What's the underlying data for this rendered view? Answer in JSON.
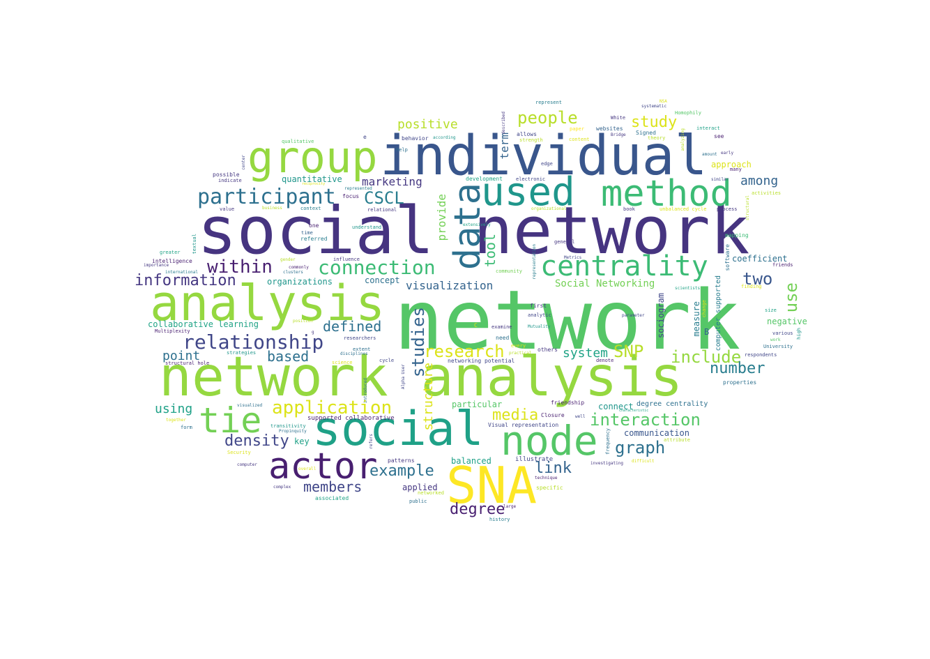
{
  "words": [
    {
      "text": "network",
      "color": "#55c667"
    },
    {
      "text": "social network",
      "color": "#463480"
    },
    {
      "text": "network analysis",
      "color": "#95d840"
    },
    {
      "text": "individual",
      "color": "#39568c"
    },
    {
      "text": "analysis",
      "color": "#95d840"
    },
    {
      "text": "social",
      "color": "#1fa187"
    },
    {
      "text": "SNA",
      "color": "#fde725"
    },
    {
      "text": "group",
      "color": "#95d840"
    },
    {
      "text": "used",
      "color": "#1f968b"
    },
    {
      "text": "method",
      "color": "#3cbb75"
    },
    {
      "text": "data",
      "color": "#2d708e"
    },
    {
      "text": "node",
      "color": "#55c667"
    },
    {
      "text": "actor",
      "color": "#481f70"
    },
    {
      "text": "tie",
      "color": "#73d055"
    },
    {
      "text": "centrality",
      "color": "#3cbb75"
    },
    {
      "text": "relationship",
      "color": "#404688"
    },
    {
      "text": "participant",
      "color": "#2d708e"
    },
    {
      "text": "connection",
      "color": "#3cbb75"
    },
    {
      "text": "application",
      "color": "#dce319"
    },
    {
      "text": "interaction",
      "color": "#55c667"
    },
    {
      "text": "people",
      "color": "#b8de29"
    },
    {
      "text": "research",
      "color": "#dce319"
    },
    {
      "text": "include",
      "color": "#95d840"
    },
    {
      "text": "studies",
      "color": "#33638d"
    },
    {
      "text": "within",
      "color": "#481f70"
    },
    {
      "text": "information",
      "color": "#453781"
    },
    {
      "text": "CSCL",
      "color": "#287d8e"
    },
    {
      "text": "graph",
      "color": "#2d708e"
    },
    {
      "text": "density",
      "color": "#404688"
    },
    {
      "text": "number",
      "color": "#287d8e"
    },
    {
      "text": "study",
      "color": "#dce319"
    },
    {
      "text": "two",
      "color": "#39568c"
    },
    {
      "text": "use",
      "color": "#73d055"
    },
    {
      "text": "degree",
      "color": "#481f70"
    },
    {
      "text": "example",
      "color": "#2d708e"
    },
    {
      "text": "media",
      "color": "#dce319"
    },
    {
      "text": "members",
      "color": "#404688"
    },
    {
      "text": "defined",
      "color": "#2d708e"
    },
    {
      "text": "SNP",
      "color": "#b8de29"
    },
    {
      "text": "link",
      "color": "#33638d"
    },
    {
      "text": "tool",
      "color": "#3cbb75"
    },
    {
      "text": "positive",
      "color": "#b8de29"
    },
    {
      "text": "structure",
      "color": "#dce319"
    },
    {
      "text": "among",
      "color": "#33638d"
    },
    {
      "text": "based",
      "color": "#2d708e"
    },
    {
      "text": "system",
      "color": "#20a386"
    },
    {
      "text": "point",
      "color": "#2d708e"
    },
    {
      "text": "using",
      "color": "#1fa187"
    },
    {
      "text": "marketing",
      "color": "#453781"
    },
    {
      "text": "visualization",
      "color": "#33638d"
    },
    {
      "text": "term",
      "color": "#33638d"
    },
    {
      "text": "provide",
      "color": "#73d055"
    },
    {
      "text": "Social Networking",
      "color": "#73d055"
    },
    {
      "text": "collaborative learning",
      "color": "#20a386"
    },
    {
      "text": "particular",
      "color": "#55c667"
    },
    {
      "text": "quantitative",
      "color": "#1f968b"
    },
    {
      "text": "coefficient",
      "color": "#2d708e"
    },
    {
      "text": "organizations",
      "color": "#1f968b"
    },
    {
      "text": "concept",
      "color": "#2d708e"
    },
    {
      "text": "approach",
      "color": "#dce319"
    },
    {
      "text": "negative",
      "color": "#55c667"
    },
    {
      "text": "communication",
      "color": "#39568c"
    },
    {
      "text": "sociogram",
      "color": "#404688"
    },
    {
      "text": "measure",
      "color": "#287d8e"
    },
    {
      "text": "computer supported",
      "color": "#287d8e"
    },
    {
      "text": "applied",
      "color": "#453781"
    },
    {
      "text": "balanced",
      "color": "#1fa187"
    },
    {
      "text": "key",
      "color": "#1fa187"
    },
    {
      "text": "connect",
      "color": "#1f968b"
    },
    {
      "text": "degree centrality",
      "color": "#2d708e"
    },
    {
      "text": "supported collaborative",
      "color": "#481f70"
    },
    {
      "text": "illustrate",
      "color": "#404688"
    },
    {
      "text": "friendship",
      "color": "#481f70"
    },
    {
      "text": "Visual representation",
      "color": "#404688"
    },
    {
      "text": "networking potential",
      "color": "#404688"
    },
    {
      "text": "Closure",
      "color": "#481f70"
    },
    {
      "text": "B",
      "color": "#33638d"
    },
    {
      "text": "software",
      "color": "#2d708e"
    },
    {
      "text": "properties",
      "color": "#2d708e"
    },
    {
      "text": "respondents",
      "color": "#404688"
    },
    {
      "text": "University",
      "color": "#2d708e"
    },
    {
      "text": "size",
      "color": "#20a386"
    },
    {
      "text": "high",
      "color": "#1f968b"
    },
    {
      "text": "various",
      "color": "#404688"
    },
    {
      "text": "work",
      "color": "#55c667"
    },
    {
      "text": "friends",
      "color": "#481f70"
    },
    {
      "text": "mapping",
      "color": "#3cbb75"
    },
    {
      "text": "finding",
      "color": "#dce319"
    },
    {
      "text": "scientists",
      "color": "#20a386"
    },
    {
      "text": "change",
      "color": "#dce319"
    },
    {
      "text": "parameter",
      "color": "#404688"
    },
    {
      "text": "Mutuality",
      "color": "#1f968b"
    },
    {
      "text": "examine",
      "color": "#453781"
    },
    {
      "text": "analytic",
      "color": "#404688"
    },
    {
      "text": "first",
      "color": "#453781"
    },
    {
      "text": "need",
      "color": "#2d708e"
    },
    {
      "text": "every",
      "color": "#dce319"
    },
    {
      "text": "practical",
      "color": "#b8de29"
    },
    {
      "text": "others",
      "color": "#453781"
    },
    {
      "text": "denote",
      "color": "#481f70"
    },
    {
      "text": "C",
      "color": "#dce319"
    },
    {
      "text": "representation",
      "color": "#287d8e"
    },
    {
      "text": "Metrics",
      "color": "#404688"
    },
    {
      "text": "general",
      "color": "#453781"
    },
    {
      "text": "community",
      "color": "#73d055"
    },
    {
      "text": "extensively",
      "color": "#20a386"
    },
    {
      "text": "understand",
      "color": "#1f968b"
    },
    {
      "text": "one",
      "color": "#481f70"
    },
    {
      "text": "time",
      "color": "#33638d"
    },
    {
      "text": "referred",
      "color": "#287d8e"
    },
    {
      "text": "context",
      "color": "#287d8e"
    },
    {
      "text": "relational",
      "color": "#453781"
    },
    {
      "text": "focus",
      "color": "#481f70"
    },
    {
      "text": "represented",
      "color": "#287d8e"
    },
    {
      "text": "development",
      "color": "#20a386"
    },
    {
      "text": "electronic",
      "color": "#404688"
    },
    {
      "text": "edge",
      "color": "#404688"
    },
    {
      "text": "allows",
      "color": "#404688"
    },
    {
      "text": "strength",
      "color": "#b8de29"
    },
    {
      "text": "paper",
      "color": "#fde725"
    },
    {
      "text": "content",
      "color": "#dce319"
    },
    {
      "text": "websites",
      "color": "#33638d"
    },
    {
      "text": "Bridge",
      "color": "#453781"
    },
    {
      "text": "Signed",
      "color": "#2d708e"
    },
    {
      "text": "theory",
      "color": "#b8de29"
    },
    {
      "text": "White",
      "color": "#453781"
    },
    {
      "text": "described",
      "color": "#453781"
    },
    {
      "text": "behavior",
      "color": "#404688"
    },
    {
      "text": "according",
      "color": "#1f968b"
    },
    {
      "text": "help",
      "color": "#2d708e"
    },
    {
      "text": "e",
      "color": "#404688"
    },
    {
      "text": "qualitative",
      "color": "#55c667"
    },
    {
      "text": "center",
      "color": "#404688"
    },
    {
      "text": "possible",
      "color": "#453781"
    },
    {
      "text": "indicate",
      "color": "#453781"
    },
    {
      "text": "reciprocity",
      "color": "#dce319"
    },
    {
      "text": "value",
      "color": "#453781"
    },
    {
      "text": "business",
      "color": "#b8de29"
    },
    {
      "text": "textual",
      "color": "#1f968b"
    },
    {
      "text": "greater",
      "color": "#20a386"
    },
    {
      "text": "intelligence",
      "color": "#481f70"
    },
    {
      "text": "importance",
      "color": "#453781"
    },
    {
      "text": "international",
      "color": "#287d8e"
    },
    {
      "text": "gender",
      "color": "#b8de29"
    },
    {
      "text": "commonly",
      "color": "#481f70"
    },
    {
      "text": "clusters",
      "color": "#2d708e"
    },
    {
      "text": "influence",
      "color": "#453781"
    },
    {
      "text": "researchers",
      "color": "#404688"
    },
    {
      "text": "position",
      "color": "#b8de29"
    },
    {
      "text": "g",
      "color": "#453781"
    },
    {
      "text": "Multiplexity",
      "color": "#481f70"
    },
    {
      "text": "extent",
      "color": "#2d708e"
    },
    {
      "text": "disciplines",
      "color": "#2d708e"
    },
    {
      "text": "strategies",
      "color": "#1f968b"
    },
    {
      "text": "science",
      "color": "#dce319"
    },
    {
      "text": "structural hole",
      "color": "#481f70"
    },
    {
      "text": "cycle",
      "color": "#404688"
    },
    {
      "text": "introduced",
      "color": "#2d708e"
    },
    {
      "text": "Alpha User",
      "color": "#404688"
    },
    {
      "text": "visualized",
      "color": "#2d708e"
    },
    {
      "text": "together",
      "color": "#dce319"
    },
    {
      "text": "form",
      "color": "#2d708e"
    },
    {
      "text": "transitivity",
      "color": "#1f968b"
    },
    {
      "text": "Propinquity",
      "color": "#2d708e"
    },
    {
      "text": "refers",
      "color": "#404688"
    },
    {
      "text": "patterns",
      "color": "#453781"
    },
    {
      "text": "Security",
      "color": "#dce319"
    },
    {
      "text": "computer",
      "color": "#453781"
    },
    {
      "text": "overall",
      "color": "#dce319"
    },
    {
      "text": "complex",
      "color": "#453781"
    },
    {
      "text": "networked",
      "color": "#b8de29"
    },
    {
      "text": "public",
      "color": "#2d708e"
    },
    {
      "text": "associated",
      "color": "#20a386"
    },
    {
      "text": "large",
      "color": "#481f70"
    },
    {
      "text": "history",
      "color": "#287d8e"
    },
    {
      "text": "technique",
      "color": "#481f70"
    },
    {
      "text": "specific",
      "color": "#b8de29"
    },
    {
      "text": "well",
      "color": "#404688"
    },
    {
      "text": "characteristic",
      "color": "#20a386"
    },
    {
      "text": "attribute",
      "color": "#b8de29"
    },
    {
      "text": "frequency",
      "color": "#2d708e"
    },
    {
      "text": "difficult",
      "color": "#dce319"
    },
    {
      "text": "investigating",
      "color": "#453781"
    },
    {
      "text": "represent",
      "color": "#287d8e"
    },
    {
      "text": "NSA",
      "color": "#dce319"
    },
    {
      "text": "systematic",
      "color": "#404688"
    },
    {
      "text": "Homophily",
      "color": "#55c667"
    },
    {
      "text": "interact",
      "color": "#1fa187"
    },
    {
      "text": "analyzing",
      "color": "#b8de29"
    },
    {
      "text": "see",
      "color": "#481f70"
    },
    {
      "text": "amount",
      "color": "#2d708e"
    },
    {
      "text": "early",
      "color": "#453781"
    },
    {
      "text": "many",
      "color": "#481f70"
    },
    {
      "text": "similar",
      "color": "#404688"
    },
    {
      "text": "activities",
      "color": "#b8de29"
    },
    {
      "text": "structural",
      "color": "#b8de29"
    },
    {
      "text": "process",
      "color": "#453781"
    },
    {
      "text": "unbalanced cycle",
      "color": "#dce319"
    },
    {
      "text": "book",
      "color": "#453781"
    },
    {
      "text": "organizational",
      "color": "#b8de29"
    }
  ]
}
